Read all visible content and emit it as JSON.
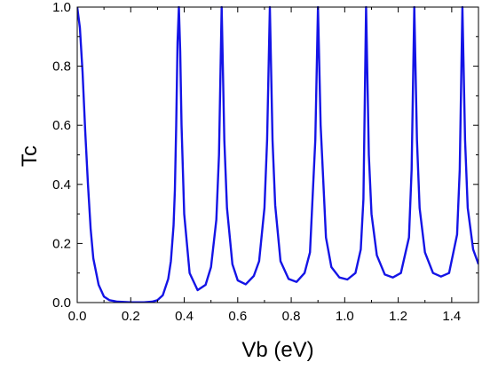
{
  "chart_data": {
    "type": "line",
    "xlabel": "Vb (eV)",
    "ylabel": "Tc",
    "xlim": [
      0.0,
      1.5
    ],
    "ylim": [
      0.0,
      1.0
    ],
    "x_ticks": [
      "0.0",
      "0.2",
      "0.4",
      "0.6",
      "0.8",
      "1.0",
      "1.2",
      "1.4"
    ],
    "y_ticks": [
      "0.0",
      "0.2",
      "0.4",
      "0.6",
      "0.8",
      "1.0"
    ],
    "grid": false,
    "color": "#1414e6",
    "series": [
      {
        "x": [
          0.0,
          0.01,
          0.02,
          0.03,
          0.04,
          0.05,
          0.06,
          0.08,
          0.1,
          0.12,
          0.15,
          0.2,
          0.25,
          0.28,
          0.3,
          0.32,
          0.34,
          0.35,
          0.36,
          0.365,
          0.37,
          0.375,
          0.38,
          0.385,
          0.39,
          0.4,
          0.42,
          0.45,
          0.48,
          0.5,
          0.52,
          0.53,
          0.54,
          0.55,
          0.56,
          0.58,
          0.6,
          0.63,
          0.66,
          0.68,
          0.7,
          0.71,
          0.72,
          0.73,
          0.74,
          0.76,
          0.79,
          0.82,
          0.85,
          0.87,
          0.89,
          0.9,
          0.91,
          0.93,
          0.95,
          0.98,
          1.01,
          1.04,
          1.06,
          1.07,
          1.08,
          1.09,
          1.1,
          1.12,
          1.15,
          1.18,
          1.21,
          1.24,
          1.25,
          1.26,
          1.27,
          1.28,
          1.3,
          1.33,
          1.36,
          1.39,
          1.42,
          1.43,
          1.44,
          1.45,
          1.46,
          1.48,
          1.5
        ],
        "y": [
          1.0,
          0.93,
          0.78,
          0.58,
          0.4,
          0.25,
          0.15,
          0.06,
          0.02,
          0.008,
          0.003,
          0.001,
          0.001,
          0.003,
          0.008,
          0.025,
          0.08,
          0.14,
          0.26,
          0.38,
          0.6,
          0.88,
          1.0,
          0.85,
          0.6,
          0.3,
          0.1,
          0.042,
          0.06,
          0.12,
          0.28,
          0.5,
          1.0,
          0.55,
          0.32,
          0.13,
          0.075,
          0.062,
          0.09,
          0.14,
          0.32,
          0.55,
          1.0,
          0.55,
          0.33,
          0.14,
          0.08,
          0.07,
          0.1,
          0.17,
          0.55,
          1.0,
          0.6,
          0.22,
          0.12,
          0.085,
          0.078,
          0.1,
          0.18,
          0.35,
          1.0,
          0.5,
          0.3,
          0.16,
          0.095,
          0.085,
          0.1,
          0.22,
          0.45,
          1.0,
          0.55,
          0.32,
          0.17,
          0.1,
          0.088,
          0.1,
          0.23,
          0.45,
          1.0,
          0.55,
          0.32,
          0.18,
          0.13
        ]
      }
    ]
  }
}
